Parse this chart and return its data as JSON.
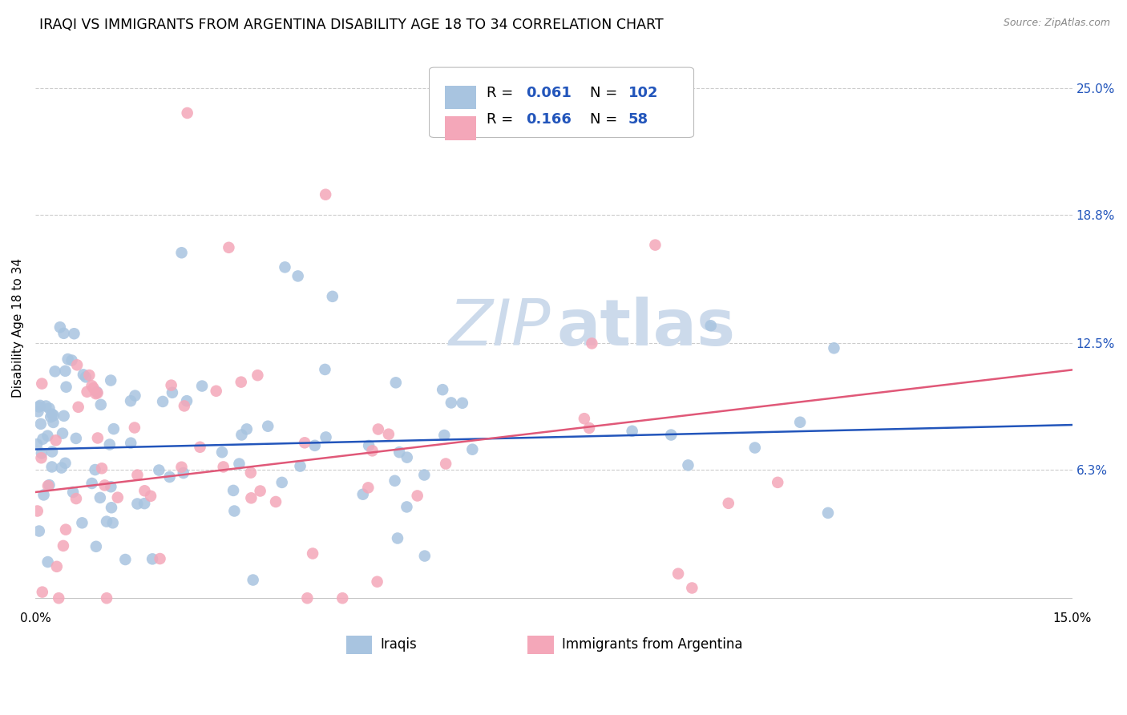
{
  "title": "IRAQI VS IMMIGRANTS FROM ARGENTINA DISABILITY AGE 18 TO 34 CORRELATION CHART",
  "source": "Source: ZipAtlas.com",
  "ylabel": "Disability Age 18 to 34",
  "xlim": [
    0.0,
    0.15
  ],
  "ylim": [
    -0.005,
    0.27
  ],
  "y_tick_values_right": [
    0.063,
    0.125,
    0.188,
    0.25
  ],
  "y_tick_labels_right": [
    "6.3%",
    "12.5%",
    "18.8%",
    "25.0%"
  ],
  "x_ticks": [
    0.0,
    0.05,
    0.1,
    0.15
  ],
  "x_tick_labels": [
    "0.0%",
    "",
    "",
    "15.0%"
  ],
  "iraqis_R": 0.061,
  "iraqis_N": 102,
  "argentina_R": 0.166,
  "argentina_N": 58,
  "iraqis_color": "#a8c4e0",
  "argentina_color": "#f4a7b9",
  "iraqis_line_color": "#2255bb",
  "argentina_line_color": "#e05878",
  "background_color": "#ffffff",
  "grid_color": "#cccccc",
  "watermark_zip": "ZIP",
  "watermark_atlas": "atlas",
  "title_fontsize": 12.5,
  "axis_label_fontsize": 11,
  "tick_fontsize": 11,
  "legend_fontsize": 13,
  "iraqis_seed": 42,
  "argentina_seed": 7
}
